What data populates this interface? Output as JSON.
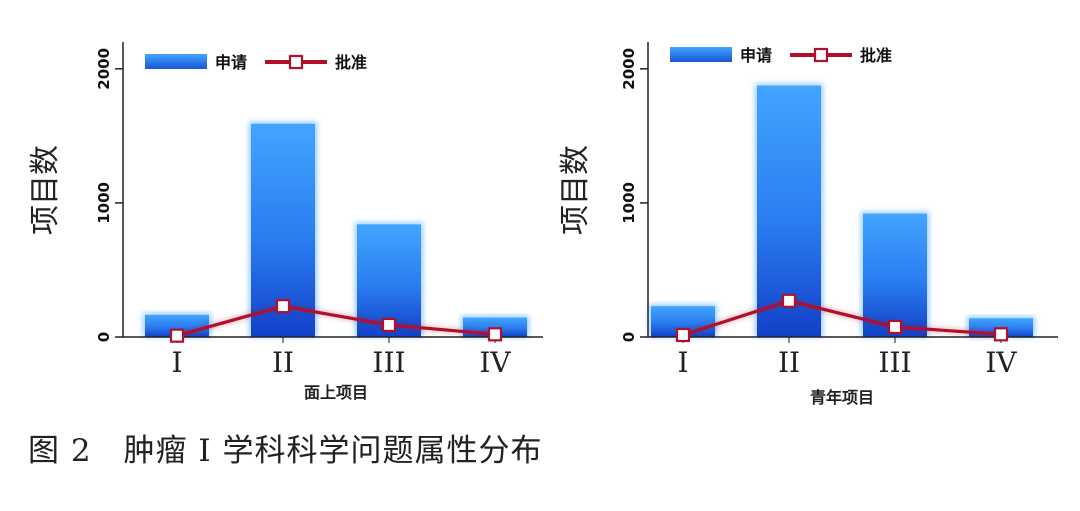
{
  "caption": "图 2　肿瘤 I 学科科学问题属性分布",
  "colors": {
    "bar_light": "#42a5ff",
    "bar_dark": "#1240c8",
    "line": "#b0102a",
    "marker_fill": "#ffffff",
    "axis": "#222222"
  },
  "chart_data": [
    {
      "type": "bar",
      "title": "",
      "xlabel": "面上项目",
      "ylabel": "项目数",
      "categories": [
        "I",
        "II",
        "III",
        "IV"
      ],
      "ylim": [
        0,
        2200
      ],
      "yticks": [
        0,
        1000,
        2000
      ],
      "legend_position": "top-left",
      "series": [
        {
          "name": "申请",
          "kind": "bar",
          "values": [
            165,
            1590,
            840,
            145
          ]
        },
        {
          "name": "批准",
          "kind": "line",
          "values": [
            10,
            230,
            90,
            20
          ]
        }
      ]
    },
    {
      "type": "bar",
      "title": "",
      "xlabel": "青年项目",
      "ylabel": "项目数",
      "categories": [
        "I",
        "II",
        "III",
        "IV"
      ],
      "ylim": [
        0,
        2200
      ],
      "yticks": [
        0,
        1000,
        2000
      ],
      "legend_position": "top-left",
      "series": [
        {
          "name": "申请",
          "kind": "bar",
          "values": [
            230,
            1875,
            920,
            140
          ]
        },
        {
          "name": "批准",
          "kind": "line",
          "values": [
            15,
            270,
            75,
            20
          ]
        }
      ]
    }
  ]
}
